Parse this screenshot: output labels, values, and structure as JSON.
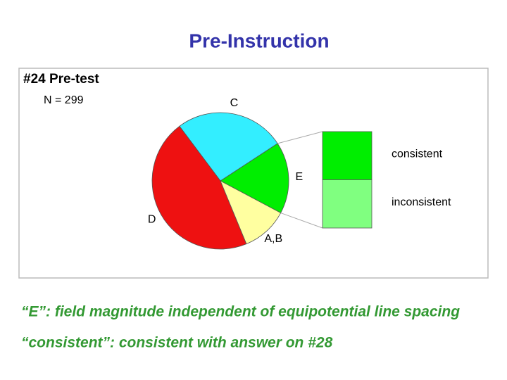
{
  "header": {
    "title": "Pre-Instruction"
  },
  "chart_data": {
    "type": "pie-of-bar",
    "title": "#24 Pre-test",
    "subtitle": "N = 299",
    "categories": [
      "E",
      "C",
      "D",
      "A,B"
    ],
    "values": [
      17,
      26,
      46,
      11
    ],
    "colors": [
      "#00ee00",
      "#33eeff",
      "#ee1111",
      "#ffffa0"
    ],
    "breakdown": {
      "categories": [
        "consistent",
        "inconsistent"
      ],
      "values": [
        50,
        50
      ],
      "colors": [
        "#00ee00",
        "#80ff80"
      ]
    }
  },
  "notes": [
    "“E”: field magnitude independent of equipotential line spacing",
    "“consistent”: consistent with answer on #28"
  ]
}
